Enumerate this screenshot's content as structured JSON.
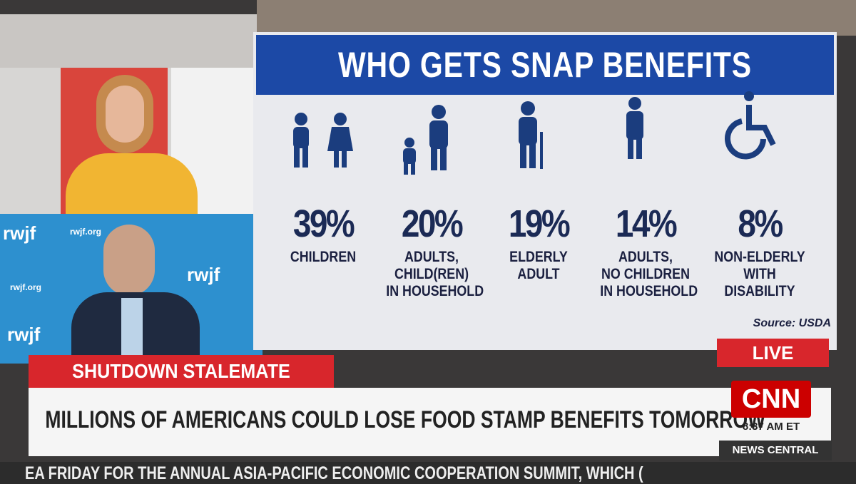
{
  "graphic": {
    "title": "WHO GETS SNAP BENEFITS",
    "items": [
      {
        "percent": "39%",
        "label": [
          "CHILDREN"
        ]
      },
      {
        "percent": "20%",
        "label": [
          "ADULTS,",
          "CHILD(REN)",
          "IN HOUSEHOLD"
        ]
      },
      {
        "percent": "19%",
        "label": [
          "ELDERLY",
          "ADULT"
        ]
      },
      {
        "percent": "14%",
        "label": [
          "ADULTS,",
          "NO CHILDREN",
          "IN HOUSEHOLD"
        ]
      },
      {
        "percent": "8%",
        "label": [
          "NON-ELDERLY",
          "WITH",
          "DISABILITY"
        ]
      }
    ],
    "source": "Source: USDA"
  },
  "guest_backdrop": {
    "logo": "rwjf",
    "url": "rwjf.org"
  },
  "lower_third": {
    "live": "LIVE",
    "topic": "SHUTDOWN STALEMATE",
    "headline": "MILLIONS OF AMERICANS COULD LOSE FOOD STAMP BENEFITS TOMORROW",
    "network": "CNN",
    "time": "8:37 AM ET",
    "show": "NEWS CENTRAL",
    "ticker": "EA FRIDAY FOR THE ANNUAL ASIA-PACIFIC ECONOMIC COOPERATION SUMMIT, WHICH ("
  }
}
